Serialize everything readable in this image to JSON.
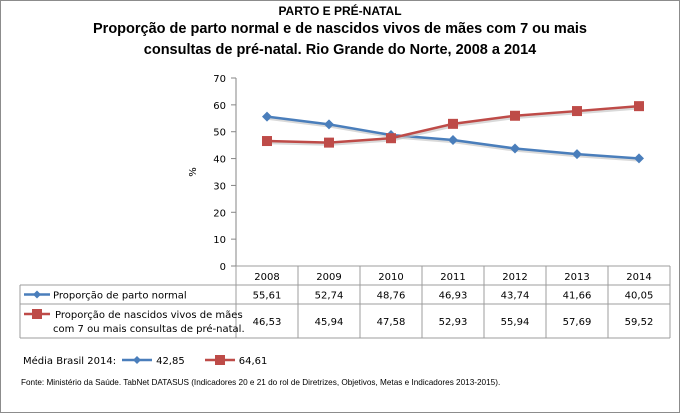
{
  "section_title": "PARTO E PRÉ-NATAL",
  "chart_title_line1": "Proporção de parto normal e de nascidos vivos de mães com 7 ou mais",
  "chart_title_line2": "consultas de pré-natal. Rio Grande do Norte, 2008 a 2014",
  "chart_data": {
    "type": "line",
    "title": "Proporção de parto normal e de nascidos vivos de mães com 7 ou mais consultas de pré-natal. Rio Grande do Norte, 2008 a 2014",
    "xlabel": "",
    "ylabel": "%",
    "ylim": [
      0,
      70
    ],
    "yticks": [
      0,
      10,
      20,
      30,
      40,
      50,
      60,
      70
    ],
    "grid": false,
    "legend": "data-table-below",
    "categories": [
      "2008",
      "2009",
      "2010",
      "2011",
      "2012",
      "2013",
      "2014"
    ],
    "series": [
      {
        "name": "Proporção de parto normal",
        "label_lines": [
          "Proporção de parto normal"
        ],
        "color": "#4a7ebb",
        "marker": "diamond",
        "values": [
          55.61,
          52.74,
          48.76,
          46.93,
          43.74,
          41.66,
          40.05
        ],
        "display_values": [
          "55,61",
          "52,74",
          "48,76",
          "46,93",
          "43,74",
          "41,66",
          "40,05"
        ]
      },
      {
        "name": "Proporção de nascidos vivos de mães com 7 ou mais consultas de pré-natal.",
        "label_lines": [
          "Proporção de nascidos vivos de mães",
          "com 7 ou mais consultas de pré-natal."
        ],
        "color": "#be4b48",
        "marker": "square",
        "values": [
          46.53,
          45.94,
          47.58,
          52.93,
          55.94,
          57.69,
          59.52
        ],
        "display_values": [
          "46,53",
          "45,94",
          "47,58",
          "52,93",
          "55,94",
          "57,69",
          "59,52"
        ]
      }
    ]
  },
  "footer": {
    "brazil_avg_label": "Média Brasil 2014:",
    "brazil_avg_series1": "42,85",
    "brazil_avg_series2": "64,61",
    "source": "Fonte: Ministério da Saúde. TabNet DATASUS (Indicadores 20 e 21 do rol de Diretrizes, Objetivos, Metas e Indicadores 2013-2015)."
  }
}
